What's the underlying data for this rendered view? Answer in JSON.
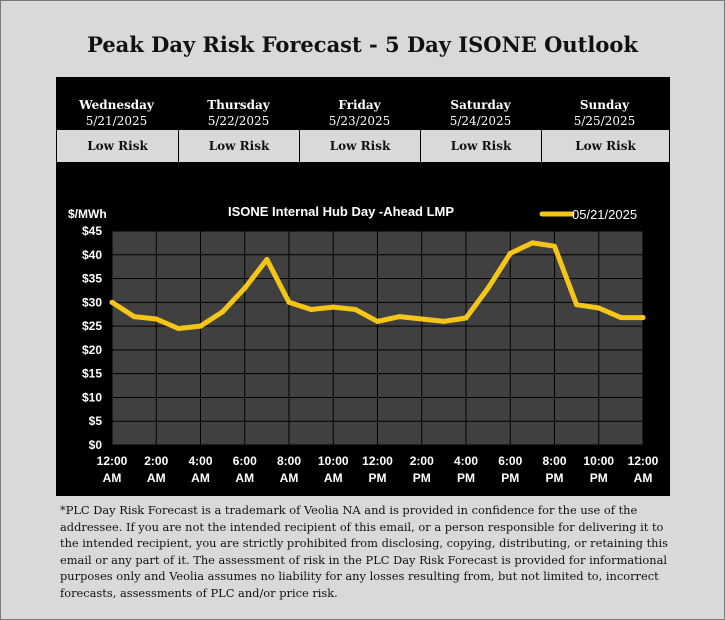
{
  "header": {
    "title": "Peak Day Risk Forecast  -  5 Day ISONE Outlook"
  },
  "days": [
    {
      "name": "Wednesday",
      "date": "5/21/2025",
      "risk": "Low Risk"
    },
    {
      "name": "Thursday",
      "date": "5/22/2025",
      "risk": "Low Risk"
    },
    {
      "name": "Friday",
      "date": "5/23/2025",
      "risk": "Low Risk"
    },
    {
      "name": "Saturday",
      "date": "5/24/2025",
      "risk": "Low Risk"
    },
    {
      "name": "Sunday",
      "date": "5/25/2025",
      "risk": "Low Risk"
    }
  ],
  "chart_data": {
    "type": "line",
    "title": "ISONE Internal Hub Day -Ahead LMP",
    "ylabel": "$/MWh",
    "xlabel": "",
    "ylim": [
      0,
      45
    ],
    "yticks": [
      "$0",
      "$5",
      "$10",
      "$15",
      "$20",
      "$25",
      "$30",
      "$35",
      "$40",
      "$45"
    ],
    "xticks": [
      [
        "12:00",
        "AM"
      ],
      [
        "2:00",
        "AM"
      ],
      [
        "4:00",
        "AM"
      ],
      [
        "6:00",
        "AM"
      ],
      [
        "8:00",
        "AM"
      ],
      [
        "10:00",
        "AM"
      ],
      [
        "12:00",
        "PM"
      ],
      [
        "2:00",
        "PM"
      ],
      [
        "4:00",
        "PM"
      ],
      [
        "6:00",
        "PM"
      ],
      [
        "8:00",
        "PM"
      ],
      [
        "10:00",
        "PM"
      ],
      [
        "12:00",
        "AM"
      ]
    ],
    "x_hours": [
      0,
      1,
      2,
      3,
      4,
      5,
      6,
      7,
      8,
      9,
      10,
      11,
      12,
      13,
      14,
      15,
      16,
      17,
      18,
      19,
      20,
      21,
      22,
      23,
      24
    ],
    "series": [
      {
        "name": "05/21/2025",
        "values": [
          30,
          27,
          26.5,
          24.5,
          25,
          28,
          33,
          39,
          30,
          28.5,
          29,
          28.5,
          26,
          27,
          26.5,
          26,
          26.7,
          33,
          40.3,
          42.5,
          41.8,
          29.5,
          28.8,
          26.8,
          26.8
        ]
      }
    ],
    "grid": true,
    "legend": "top-right",
    "colors": {
      "line": "#f5c518",
      "plot_bg": "#404040",
      "panel_bg": "#000000",
      "grid": "#000000"
    }
  },
  "footer": {
    "disclaimer": "*PLC Day Risk Forecast is a trademark of Veolia NA and is provided in confidence for the use of the addressee. If you are not the intended recipient of this email, or a person responsible for delivering it to the intended recipient, you are strictly prohibited from disclosing, copying, distributing, or retaining this email or any part of it. The assessment of risk in the PLC Day Risk Forecast is provided for informational purposes only and Veolia assumes no liability for any losses resulting from, but not limited to, incorrect forecasts, assessments of PLC and/or price risk."
  }
}
